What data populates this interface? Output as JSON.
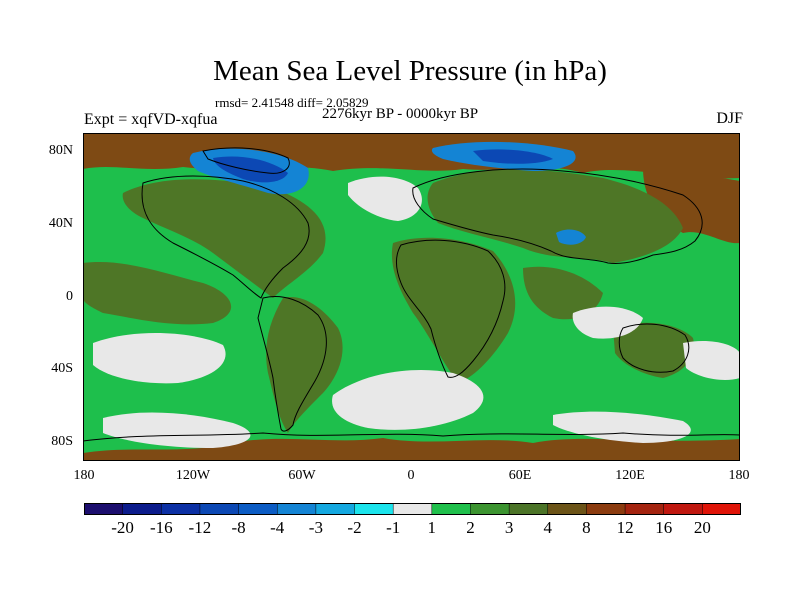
{
  "title": "Mean Sea Level Pressure (in hPa)",
  "stats": "rmsd= 2.41548  diff= 2.05829",
  "period": "2276kyr BP - 0000kyr BP",
  "experiment": "Expt = xqfVD-xqfua",
  "season": "DJF",
  "lat_labels": [
    "80N",
    "40N",
    "0",
    "40S",
    "80S"
  ],
  "lon_labels": [
    "180",
    "120W",
    "60W",
    "0",
    "60E",
    "120E",
    "180"
  ],
  "colorbar": {
    "labels": [
      "-20",
      "-16",
      "-12",
      "-8",
      "-4",
      "-3",
      "-2",
      "-1",
      "1",
      "2",
      "3",
      "4",
      "8",
      "12",
      "16",
      "20"
    ],
    "colors": [
      "#1c0e6e",
      "#0c1c8c",
      "#0c30a4",
      "#0c48b4",
      "#0c5cc4",
      "#1484d4",
      "#14a8e0",
      "#1ce4ec",
      "#e8e8e8",
      "#20c04c",
      "#3c9430",
      "#4c7428",
      "#6c5418",
      "#8c3c10",
      "#a42410",
      "#c01810",
      "#e01408"
    ]
  },
  "map_colors": {
    "ocean": "#1ebf4c",
    "land": "#4e7626",
    "high": "#7e4a14",
    "neutral": "#e8e8e8",
    "low": "#1484d4",
    "lower": "#0c48b4",
    "lowest": "#0c30a4",
    "coast": "#000000"
  }
}
